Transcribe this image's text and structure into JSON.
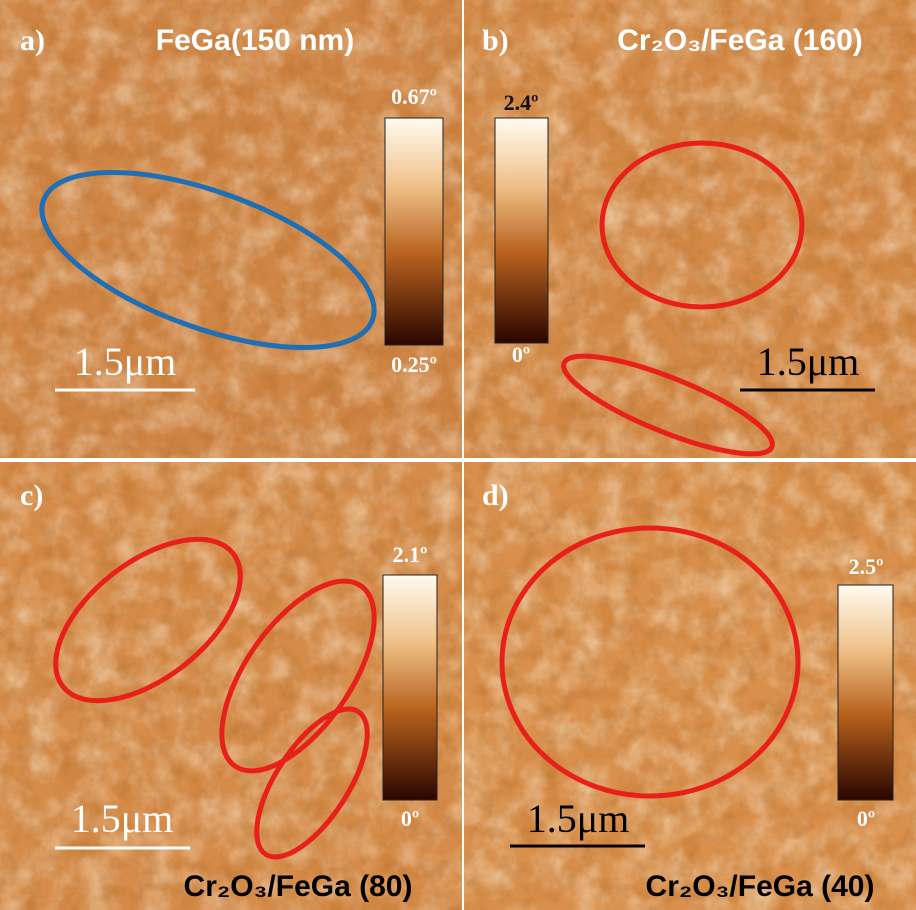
{
  "panels": [
    {
      "label": "a)",
      "title": "FeGa(150 nm)",
      "colorbar_max": "0.67º",
      "colorbar_min": "0.25º",
      "scale_bar": "1.5μm"
    },
    {
      "label": "b)",
      "title": "Cr₂O₃/FeGa (160)",
      "colorbar_max": "2.4º",
      "colorbar_min": "0º",
      "scale_bar": "1.5μm"
    },
    {
      "label": "c)",
      "title": "Cr₂O₃/FeGa (80)",
      "colorbar_max": "2.1º",
      "colorbar_min": "0º",
      "scale_bar": "1.5μm"
    },
    {
      "label": "d)",
      "title": "Cr₂O₃/FeGa (40)",
      "colorbar_max": "2.5º",
      "colorbar_min": "0º",
      "scale_bar": "1.5μm"
    }
  ]
}
